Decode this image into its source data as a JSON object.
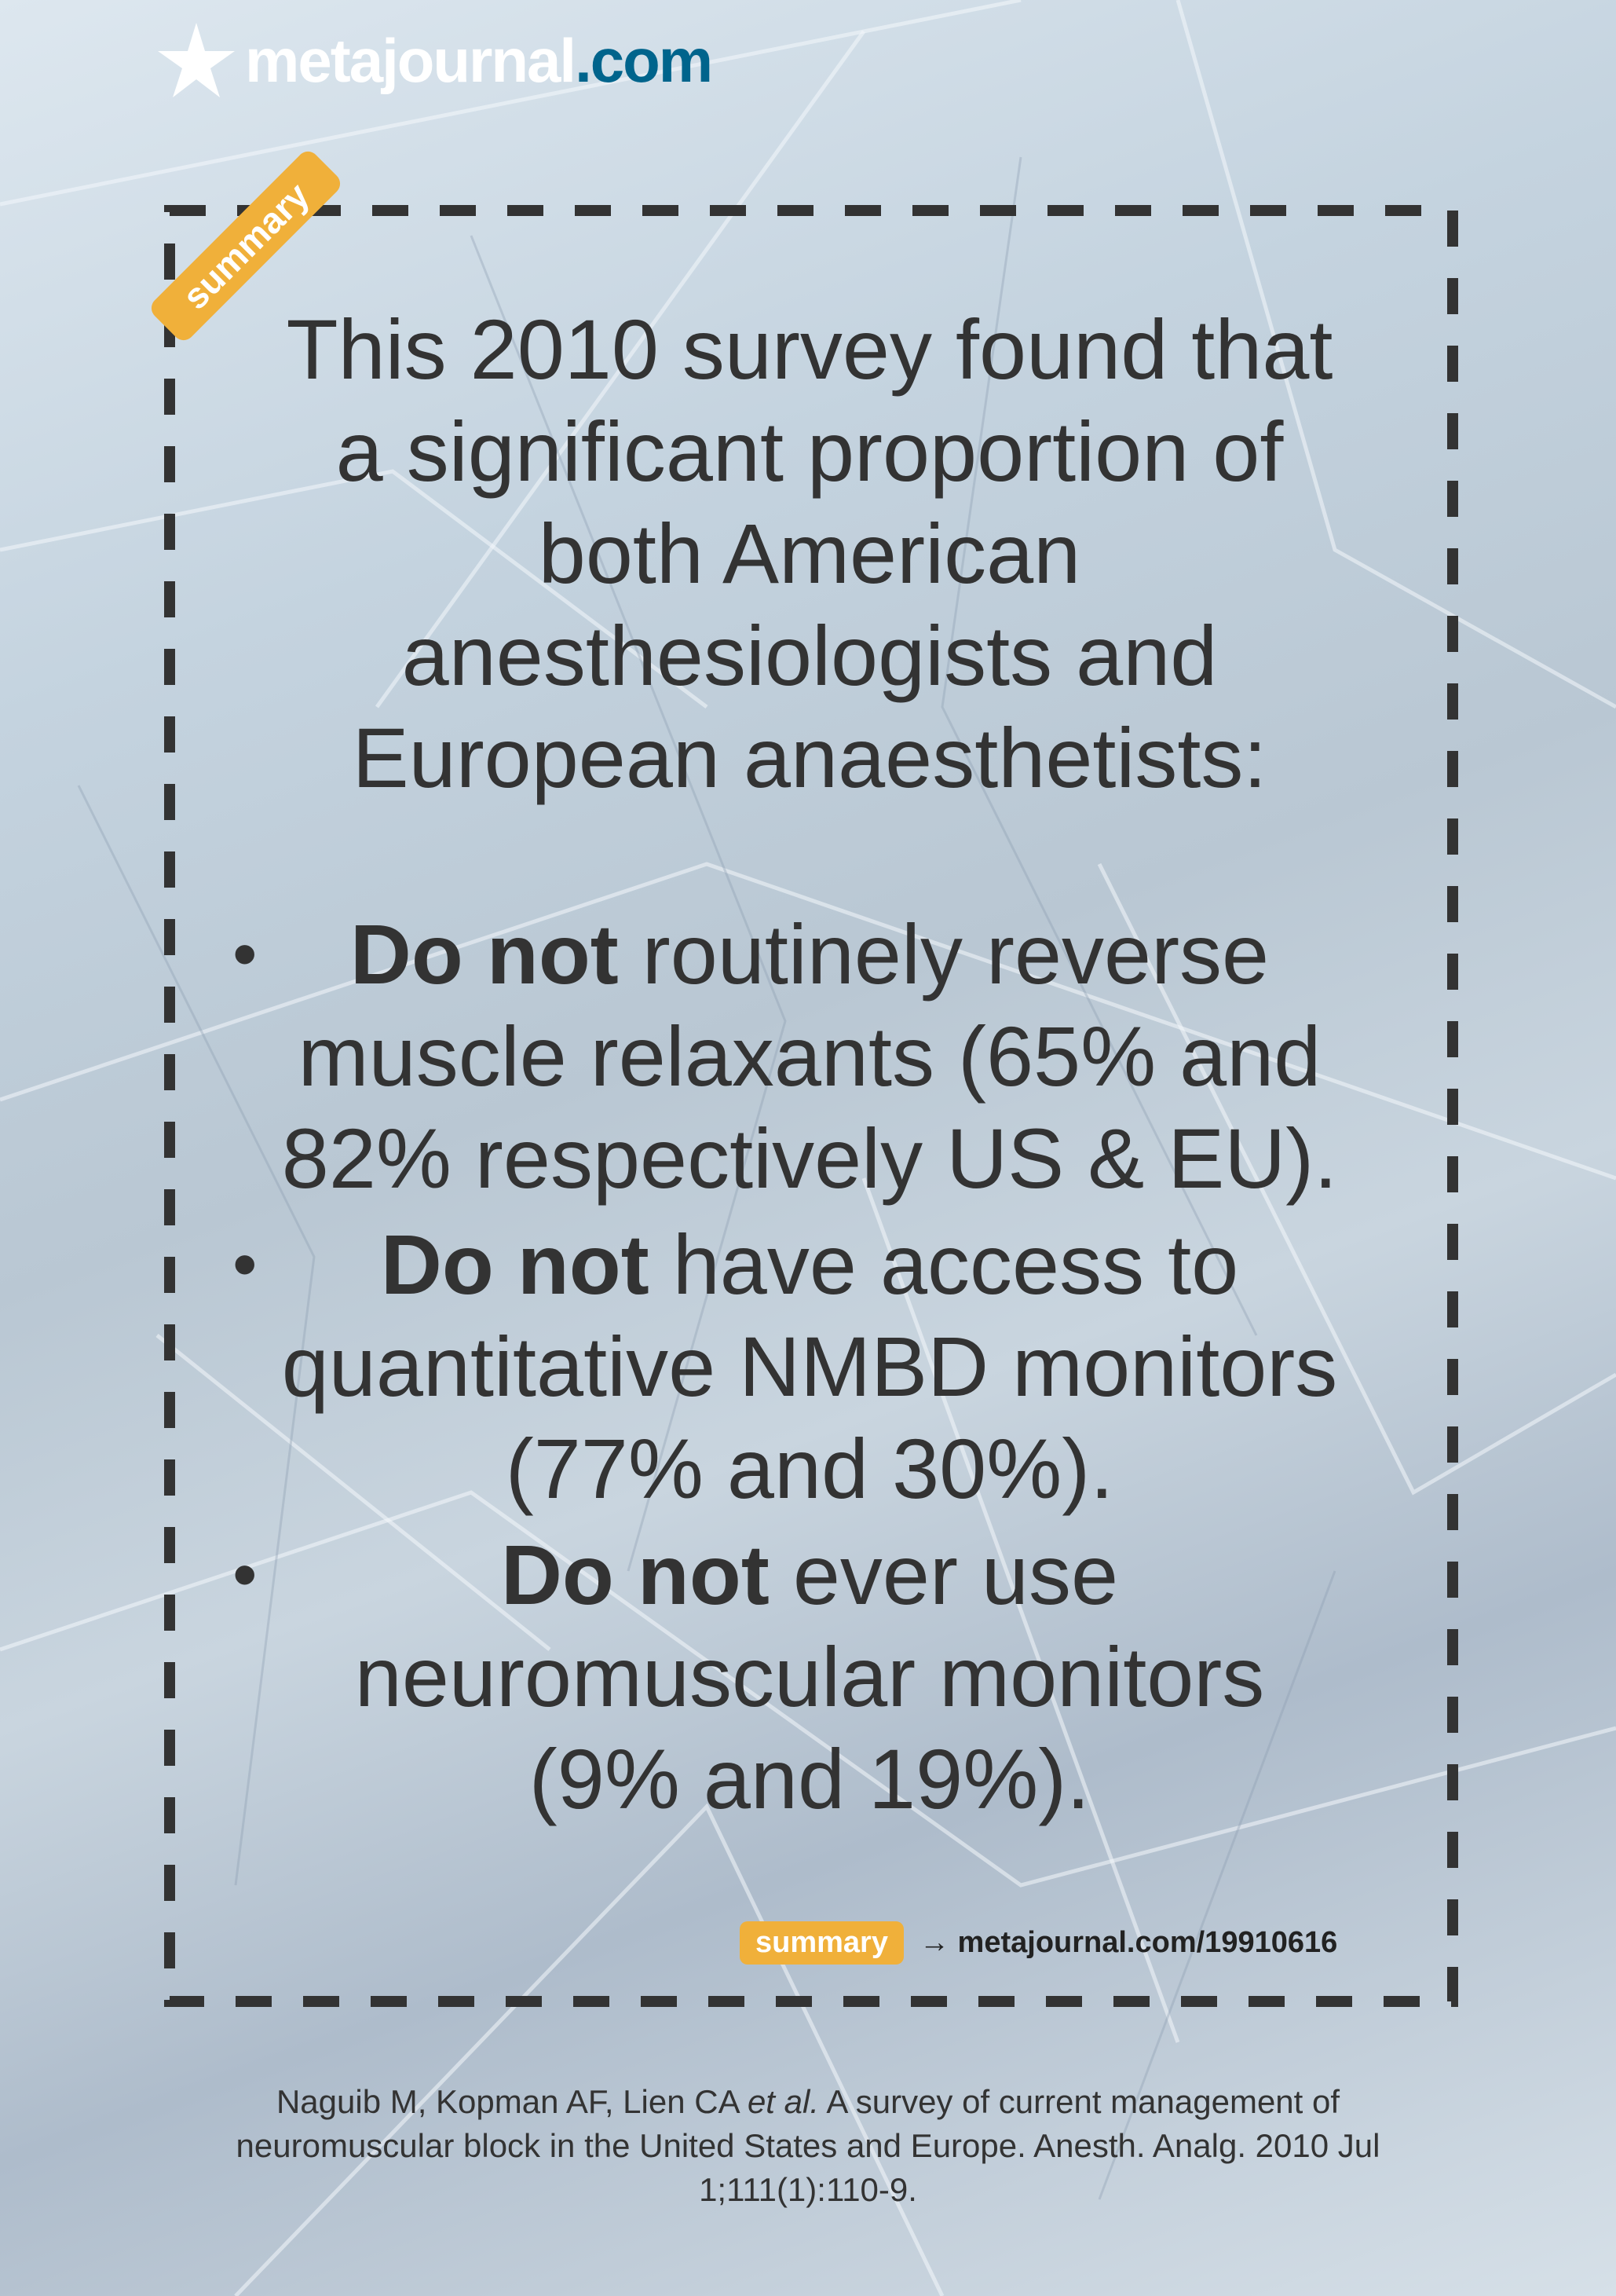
{
  "logo": {
    "name": "metajournal",
    "tld": ".com",
    "tld_color": "#00648c",
    "icon": "star-icon"
  },
  "ribbon": {
    "label": "summary",
    "color": "#f0b03a"
  },
  "intro_lines": [
    "This 2010 survey found that",
    "a significant proportion of",
    "both American",
    "anesthesiologists and",
    "European anaesthetists:"
  ],
  "bullets": [
    {
      "bold": "Do not",
      "first_rest": " routinely reverse",
      "lines": [
        "muscle relaxants (65% and",
        "82% respectively US & EU)."
      ]
    },
    {
      "bold": "Do not",
      "first_rest": " have access to",
      "lines": [
        "quantitative NMBD monitors",
        "(77% and 30%)."
      ]
    },
    {
      "bold": "Do not",
      "first_rest": " ever use",
      "lines": [
        "neuromuscular monitors",
        "(9% and 19%)."
      ]
    }
  ],
  "footer_link": {
    "badge": "summary",
    "arrow": "→",
    "url": "metajournal.com/19910616"
  },
  "citation": {
    "line1_pre": "Naguib M, Kopman AF, Lien CA ",
    "line1_em": "et al.",
    "line1_post": " A survey of current management of",
    "line2": "neuromuscular block in the United States and Europe. Anesth. Analg. 2010 Jul",
    "line3": "1;111(1):110-9."
  }
}
